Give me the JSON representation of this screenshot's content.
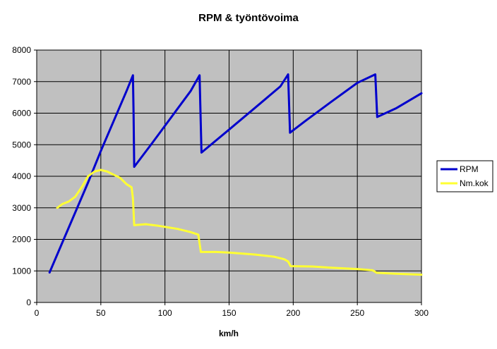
{
  "chart_data": {
    "type": "line",
    "title": "RPM & työntövoima",
    "xlabel": "km/h",
    "ylabel": "",
    "xlim": [
      0,
      300
    ],
    "ylim": [
      0,
      8000
    ],
    "x_ticks": [
      "0",
      "50",
      "100",
      "150",
      "200",
      "250",
      "300"
    ],
    "y_ticks": [
      "0",
      "1000",
      "2000",
      "3000",
      "4000",
      "5000",
      "6000",
      "7000",
      "8000"
    ],
    "grid": true,
    "plot_background": "#c0c0c0",
    "legend_position": "right",
    "series": [
      {
        "name": "RPM",
        "color": "#0000cc",
        "points": [
          [
            10,
            950
          ],
          [
            20,
            1900
          ],
          [
            30,
            2850
          ],
          [
            40,
            3800
          ],
          [
            50,
            4800
          ],
          [
            60,
            5750
          ],
          [
            70,
            6700
          ],
          [
            75,
            7200
          ],
          [
            75.5,
            6000
          ],
          [
            76,
            4300
          ],
          [
            90,
            5050
          ],
          [
            100,
            5600
          ],
          [
            110,
            6150
          ],
          [
            120,
            6700
          ],
          [
            127,
            7200
          ],
          [
            128.5,
            4750
          ],
          [
            150,
            5480
          ],
          [
            170,
            6160
          ],
          [
            190,
            6850
          ],
          [
            196,
            7230
          ],
          [
            197.5,
            5380
          ],
          [
            210,
            5770
          ],
          [
            230,
            6370
          ],
          [
            250,
            6960
          ],
          [
            264,
            7230
          ],
          [
            265.5,
            5880
          ],
          [
            280,
            6150
          ],
          [
            300,
            6630
          ]
        ]
      },
      {
        "name": "Nm.kok",
        "color": "#ffff33",
        "points": [
          [
            16,
            3000
          ],
          [
            20,
            3120
          ],
          [
            25,
            3200
          ],
          [
            30,
            3350
          ],
          [
            35,
            3650
          ],
          [
            40,
            4000
          ],
          [
            45,
            4150
          ],
          [
            50,
            4200
          ],
          [
            55,
            4150
          ],
          [
            60,
            4050
          ],
          [
            65,
            3950
          ],
          [
            70,
            3750
          ],
          [
            74,
            3650
          ],
          [
            75,
            3300
          ],
          [
            76,
            2450
          ],
          [
            85,
            2480
          ],
          [
            95,
            2430
          ],
          [
            110,
            2330
          ],
          [
            120,
            2230
          ],
          [
            126,
            2150
          ],
          [
            128,
            1600
          ],
          [
            140,
            1600
          ],
          [
            150,
            1580
          ],
          [
            170,
            1520
          ],
          [
            185,
            1450
          ],
          [
            193,
            1370
          ],
          [
            196,
            1300
          ],
          [
            198,
            1150
          ],
          [
            215,
            1140
          ],
          [
            230,
            1100
          ],
          [
            250,
            1060
          ],
          [
            262,
            1020
          ],
          [
            265,
            940
          ],
          [
            280,
            910
          ],
          [
            300,
            880
          ]
        ]
      }
    ]
  }
}
